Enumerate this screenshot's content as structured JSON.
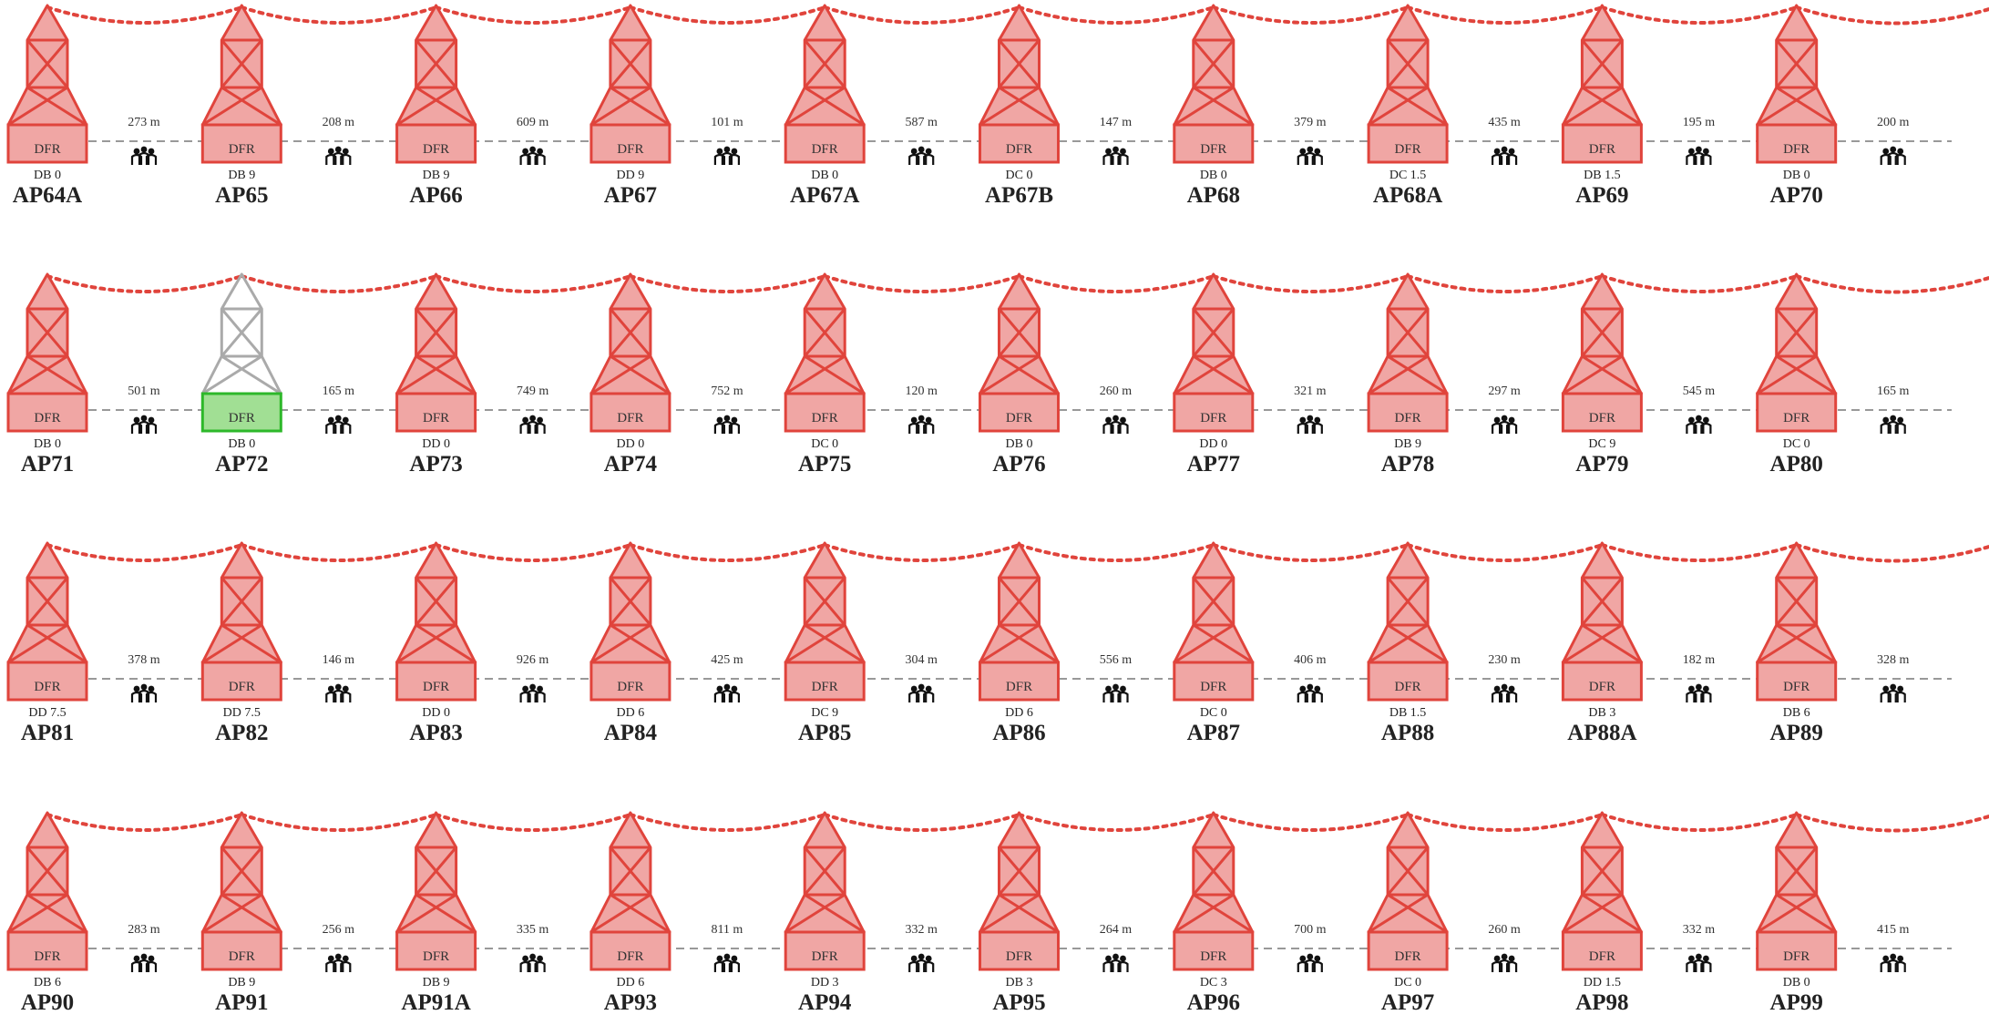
{
  "colors": {
    "tower_fill": "#f0a6a4",
    "tower_stroke": "#e0443c",
    "inactive_stroke": "#aaaaaa",
    "active_base_fill": "#a1df94",
    "active_base_stroke": "#2db82a",
    "wire": "#e0443c",
    "ground_line": "#999999",
    "text": "#222222"
  },
  "icons": {
    "tower": "transmission-tower-icon",
    "people": "people-icon"
  },
  "rows": [
    {
      "towers": [
        {
          "name": "AP64A",
          "code": "DB 0",
          "label": "DFR",
          "state": "normal"
        },
        {
          "name": "AP65",
          "code": "DB 9",
          "label": "DFR",
          "state": "normal"
        },
        {
          "name": "AP66",
          "code": "DB 9",
          "label": "DFR",
          "state": "normal"
        },
        {
          "name": "AP67",
          "code": "DD 9",
          "label": "DFR",
          "state": "normal"
        },
        {
          "name": "AP67A",
          "code": "DB 0",
          "label": "DFR",
          "state": "normal"
        },
        {
          "name": "AP67B",
          "code": "DC 0",
          "label": "DFR",
          "state": "normal"
        },
        {
          "name": "AP68",
          "code": "DB 0",
          "label": "DFR",
          "state": "normal"
        },
        {
          "name": "AP68A",
          "code": "DC 1.5",
          "label": "DFR",
          "state": "normal"
        },
        {
          "name": "AP69",
          "code": "DB 1.5",
          "label": "DFR",
          "state": "normal"
        },
        {
          "name": "AP70",
          "code": "DB 0",
          "label": "DFR",
          "state": "normal"
        }
      ],
      "spans": [
        "273 m",
        "208 m",
        "609 m",
        "101 m",
        "587 m",
        "147 m",
        "379 m",
        "435 m",
        "195 m",
        "200 m"
      ]
    },
    {
      "towers": [
        {
          "name": "AP71",
          "code": "DB 0",
          "label": "DFR",
          "state": "normal"
        },
        {
          "name": "AP72",
          "code": "DB 0",
          "label": "DFR",
          "state": "highlight"
        },
        {
          "name": "AP73",
          "code": "DD 0",
          "label": "DFR",
          "state": "normal"
        },
        {
          "name": "AP74",
          "code": "DD 0",
          "label": "DFR",
          "state": "normal"
        },
        {
          "name": "AP75",
          "code": "DC 0",
          "label": "DFR",
          "state": "normal"
        },
        {
          "name": "AP76",
          "code": "DB 0",
          "label": "DFR",
          "state": "normal"
        },
        {
          "name": "AP77",
          "code": "DD 0",
          "label": "DFR",
          "state": "normal"
        },
        {
          "name": "AP78",
          "code": "DB 9",
          "label": "DFR",
          "state": "normal"
        },
        {
          "name": "AP79",
          "code": "DC 9",
          "label": "DFR",
          "state": "normal"
        },
        {
          "name": "AP80",
          "code": "DC 0",
          "label": "DFR",
          "state": "normal"
        }
      ],
      "spans": [
        "501 m",
        "165 m",
        "749 m",
        "752 m",
        "120 m",
        "260 m",
        "321 m",
        "297 m",
        "545 m",
        "165 m"
      ]
    },
    {
      "towers": [
        {
          "name": "AP81",
          "code": "DD 7.5",
          "label": "DFR",
          "state": "normal"
        },
        {
          "name": "AP82",
          "code": "DD 7.5",
          "label": "DFR",
          "state": "normal"
        },
        {
          "name": "AP83",
          "code": "DD 0",
          "label": "DFR",
          "state": "normal"
        },
        {
          "name": "AP84",
          "code": "DD 6",
          "label": "DFR",
          "state": "normal"
        },
        {
          "name": "AP85",
          "code": "DC 9",
          "label": "DFR",
          "state": "normal"
        },
        {
          "name": "AP86",
          "code": "DD 6",
          "label": "DFR",
          "state": "normal"
        },
        {
          "name": "AP87",
          "code": "DC 0",
          "label": "DFR",
          "state": "normal"
        },
        {
          "name": "AP88",
          "code": "DB 1.5",
          "label": "DFR",
          "state": "normal"
        },
        {
          "name": "AP88A",
          "code": "DB 3",
          "label": "DFR",
          "state": "normal"
        },
        {
          "name": "AP89",
          "code": "DB 6",
          "label": "DFR",
          "state": "normal"
        }
      ],
      "spans": [
        "378 m",
        "146 m",
        "926 m",
        "425 m",
        "304 m",
        "556 m",
        "406 m",
        "230 m",
        "182 m",
        "328 m"
      ]
    },
    {
      "towers": [
        {
          "name": "AP90",
          "code": "DB 6",
          "label": "DFR",
          "state": "normal"
        },
        {
          "name": "AP91",
          "code": "DB 9",
          "label": "DFR",
          "state": "normal"
        },
        {
          "name": "AP91A",
          "code": "DB 9",
          "label": "DFR",
          "state": "normal"
        },
        {
          "name": "AP93",
          "code": "DD 6",
          "label": "DFR",
          "state": "normal"
        },
        {
          "name": "AP94",
          "code": "DD 3",
          "label": "DFR",
          "state": "normal"
        },
        {
          "name": "AP95",
          "code": "DB 3",
          "label": "DFR",
          "state": "normal"
        },
        {
          "name": "AP96",
          "code": "DC 3",
          "label": "DFR",
          "state": "normal"
        },
        {
          "name": "AP97",
          "code": "DC 0",
          "label": "DFR",
          "state": "normal"
        },
        {
          "name": "AP98",
          "code": "DD 1.5",
          "label": "DFR",
          "state": "normal"
        },
        {
          "name": "AP99",
          "code": "DB 0",
          "label": "DFR",
          "state": "normal"
        }
      ],
      "spans": [
        "283 m",
        "256 m",
        "335 m",
        "811 m",
        "332 m",
        "264 m",
        "700 m",
        "260 m",
        "332 m",
        "415 m"
      ]
    }
  ]
}
